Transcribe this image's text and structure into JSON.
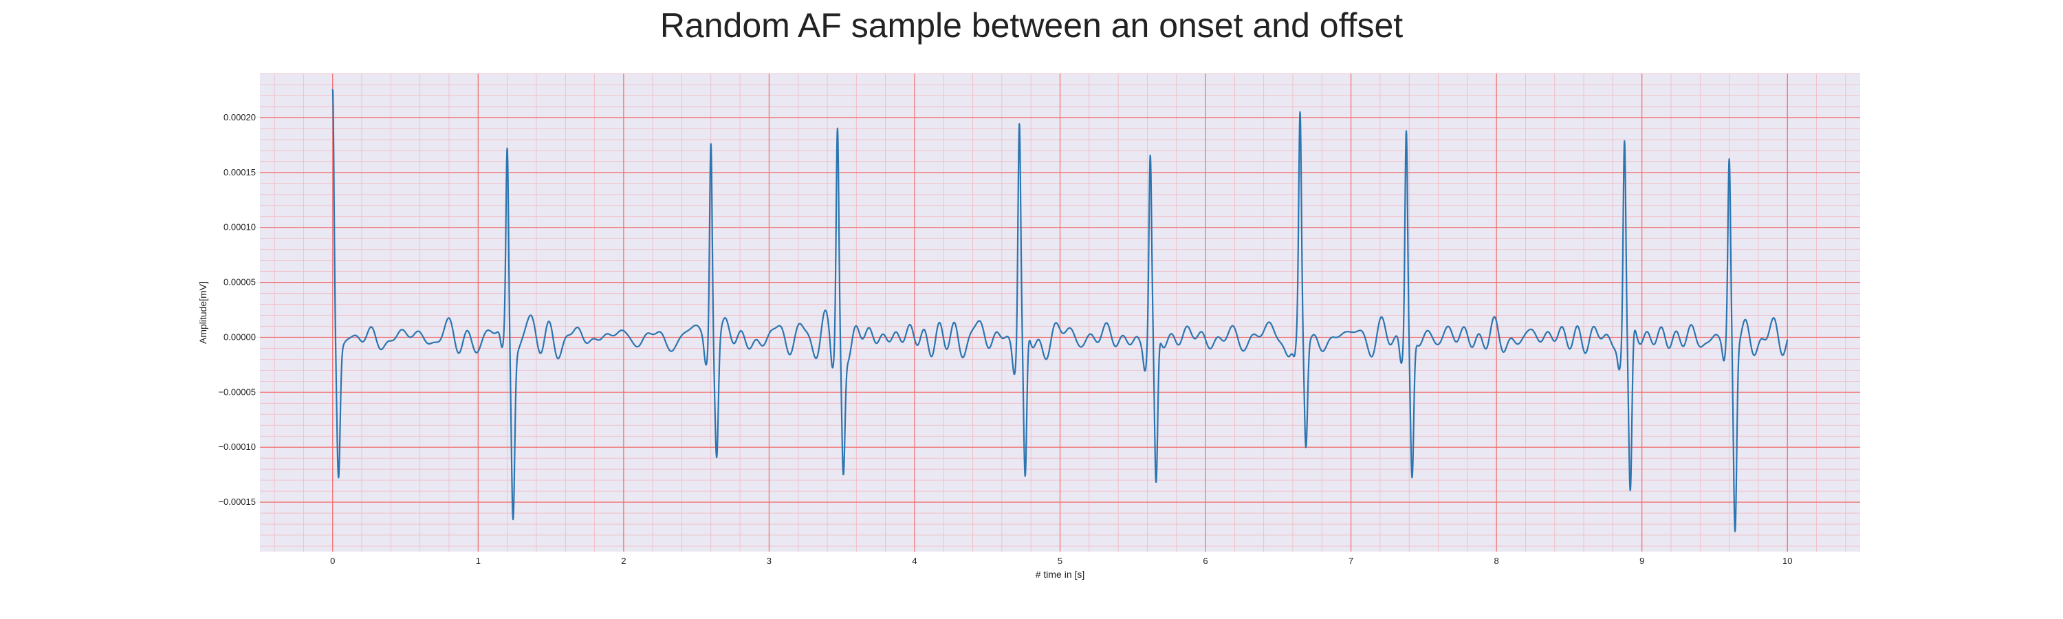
{
  "chart_data": {
    "type": "line",
    "title": "Random AF sample between an onset and offset",
    "xlabel": "# time in [s]",
    "ylabel": "Amplitude[mV]",
    "xlim": [
      -0.5,
      10.5
    ],
    "ylim": [
      -0.000195,
      0.00024
    ],
    "xticks": [
      0,
      1,
      2,
      3,
      4,
      5,
      6,
      7,
      8,
      9,
      10
    ],
    "xtick_labels": [
      "0",
      "1",
      "2",
      "3",
      "4",
      "5",
      "6",
      "7",
      "8",
      "9",
      "10"
    ],
    "yticks": [
      0.0002,
      0.00015,
      0.0001,
      5e-05,
      0.0,
      -5e-05,
      -0.0001,
      -0.00015
    ],
    "ytick_labels": [
      "0.00020",
      "0.00015",
      "0.00010",
      "0.00005",
      "0.00000",
      "−0.00005",
      "−0.00010",
      "−0.00015"
    ],
    "grid": true,
    "minor_grid": true,
    "colors": {
      "background": "#eae8f2",
      "major_grid": "#f26b6b",
      "minor_grid": "#f2b8c2",
      "line": "#2b75b0"
    },
    "series": [
      {
        "beats": [
          {
            "t": 0.0,
            "peak": 0.00022,
            "trough": -0.00012
          },
          {
            "t": 1.2,
            "peak": 0.00018,
            "trough": -0.00015
          },
          {
            "t": 2.6,
            "peak": 0.0002,
            "trough": -0.0001
          },
          {
            "t": 3.47,
            "peak": 0.0002,
            "trough": -0.000118
          },
          {
            "t": 4.72,
            "peak": 0.000203,
            "trough": -0.000148
          },
          {
            "t": 5.62,
            "peak": 0.000168,
            "trough": -0.000148
          },
          {
            "t": 6.65,
            "peak": 0.000197,
            "trough": -0.0001
          },
          {
            "t": 7.38,
            "peak": 0.000202,
            "trough": -0.00013
          },
          {
            "t": 8.88,
            "peak": 0.00019,
            "trough": -0.000155
          },
          {
            "t": 9.6,
            "peak": 0.000163,
            "trough": -0.000175
          }
        ],
        "t_start": 0.0,
        "t_end": 10.0,
        "baseline_noise_amplitude": 1.8e-05
      }
    ]
  }
}
